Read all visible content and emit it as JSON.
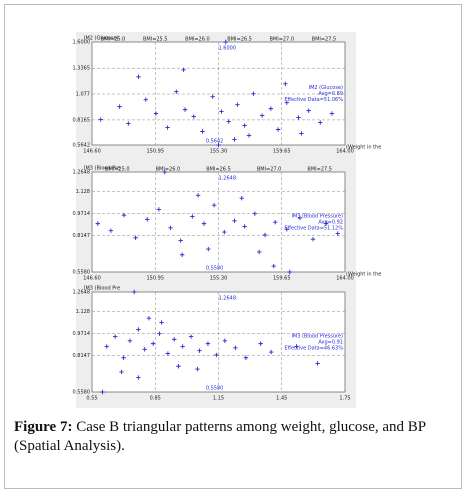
{
  "chart_data": [
    {
      "type": "scatter",
      "ylabel": "IM2 (Glucose)",
      "xlabel": "(Weight in the",
      "top_labels": [
        "BMI=25.0",
        "BMI=25.5",
        "BMI=26.0",
        "BMI=26.5",
        "BMI=27.0",
        "BMI=27.5"
      ],
      "xlim": [
        146.6,
        164.0
      ],
      "xticks": [
        {
          "value": 146.6,
          "label": "146.60"
        },
        {
          "value": 150.95,
          "label": "150.95"
        },
        {
          "value": 155.3,
          "label": "155.30"
        },
        {
          "value": 159.65,
          "label": "159.65"
        },
        {
          "value": 164.0,
          "label": "164.00"
        }
      ],
      "ylim": [
        0.5642,
        1.6
      ],
      "yticks": [
        0.5642,
        0.8165,
        1.077,
        1.3365,
        {
          "value": 1.6,
          "label": "1.6000"
        }
      ],
      "annotations": [
        "1.6000",
        "0.5642",
        "Avg=0.89",
        "Effective Data=51.06%"
      ],
      "series": [
        {
          "name": "IM2 (Glucose)",
          "color": "#2b2bd6",
          "x": [
            147.2,
            148.5,
            149.1,
            150.3,
            151.0,
            151.8,
            152.4,
            153.0,
            153.6,
            154.2,
            154.9,
            155.5,
            156.0,
            156.6,
            157.1,
            157.7,
            158.3,
            158.9,
            159.4,
            160.0,
            160.8,
            161.5,
            162.3,
            163.1,
            152.9,
            155.8,
            157.4,
            149.8,
            159.9,
            161.0,
            155.3,
            156.4
          ],
          "y": [
            0.82,
            0.95,
            0.78,
            1.02,
            0.88,
            0.74,
            1.1,
            0.92,
            0.85,
            0.7,
            1.05,
            0.9,
            0.8,
            0.97,
            0.76,
            1.08,
            0.86,
            0.93,
            0.72,
            0.99,
            0.84,
            0.91,
            0.79,
            0.88,
            1.32,
            1.6,
            0.66,
            1.25,
            1.18,
            0.68,
            0.5642,
            0.62
          ]
        }
      ]
    },
    {
      "type": "scatter",
      "ylabel": "IM3 (Blood Pre",
      "xlabel": "(Weight in the",
      "top_labels": [
        "BMI=25.0",
        "BMI=26.0",
        "BMI=26.5",
        "BMI=27.0",
        "BMI=27.5"
      ],
      "xlim": [
        146.6,
        164.0
      ],
      "xticks": [
        {
          "value": 146.6,
          "label": "146.60"
        },
        {
          "value": 150.95,
          "label": "150.95"
        },
        {
          "value": 155.3,
          "label": "155.30"
        },
        {
          "value": 159.65,
          "label": "159.65"
        },
        {
          "value": 164.0,
          "label": "164.00"
        }
      ],
      "ylim": [
        0.558,
        1.2648
      ],
      "yticks": [
        {
          "value": 0.558,
          "label": "0.5580"
        },
        0.8147,
        0.9714,
        1.128,
        1.2648
      ],
      "annotations": [
        "1.2648",
        "0.5580",
        "Avg=0.92",
        "Effective Data=51.12%"
      ],
      "series": [
        {
          "name": "IM3 (Blood Pressure)",
          "color": "#2b2bd6",
          "x": [
            147.0,
            147.9,
            148.8,
            149.6,
            150.4,
            151.2,
            152.0,
            152.7,
            153.5,
            154.3,
            155.0,
            155.7,
            156.4,
            157.1,
            157.8,
            158.5,
            159.2,
            160.0,
            160.9,
            161.8,
            162.7,
            163.5,
            151.6,
            154.6,
            156.9,
            158.1,
            153.9,
            152.8,
            160.2,
            159.1
          ],
          "y": [
            0.9,
            0.85,
            0.96,
            0.8,
            0.93,
            1.0,
            0.87,
            0.78,
            0.95,
            0.9,
            1.03,
            0.84,
            0.92,
            0.88,
            0.97,
            0.82,
            0.91,
            0.86,
            0.94,
            0.79,
            0.9,
            0.83,
            1.2648,
            0.72,
            1.08,
            0.7,
            1.1,
            0.68,
            0.558,
            0.6
          ]
        }
      ]
    },
    {
      "type": "scatter",
      "ylabel": "IM3 (Blood Pre",
      "xlim": [
        0.55,
        1.75
      ],
      "xticks": [
        0.55,
        0.85,
        1.15,
        1.45,
        1.75
      ],
      "ylim": [
        0.558,
        1.2648
      ],
      "yticks": [
        {
          "value": 0.558,
          "label": "0.5580"
        },
        0.8147,
        0.9714,
        1.128,
        1.2648
      ],
      "annotations": [
        "1.2648",
        "0.5580",
        "Avg=0.91",
        "Effective Data=46.63%"
      ],
      "series": [
        {
          "name": "IM3 (Blood Pressure)",
          "color": "#2b2bd6",
          "x": [
            0.62,
            0.66,
            0.7,
            0.73,
            0.77,
            0.8,
            0.84,
            0.87,
            0.91,
            0.94,
            0.98,
            1.02,
            1.06,
            1.1,
            1.14,
            1.18,
            1.23,
            1.28,
            0.75,
            0.88,
            0.96,
            1.05,
            0.69,
            0.82,
            1.35,
            1.4,
            1.52,
            1.62,
            0.77,
            0.6
          ],
          "y": [
            0.88,
            0.95,
            0.8,
            0.92,
            1.0,
            0.86,
            0.9,
            0.97,
            0.83,
            0.93,
            0.88,
            0.95,
            0.85,
            0.9,
            0.82,
            0.92,
            0.87,
            0.8,
            1.2648,
            1.05,
            0.74,
            0.72,
            0.7,
            1.08,
            0.9,
            0.84,
            0.88,
            0.76,
            0.66,
            0.558
          ]
        }
      ]
    }
  ],
  "caption": {
    "label": "Figure 7:",
    "text": "Case B triangular patterns among weight, glucose, and BP (Spatial Analysis)."
  }
}
